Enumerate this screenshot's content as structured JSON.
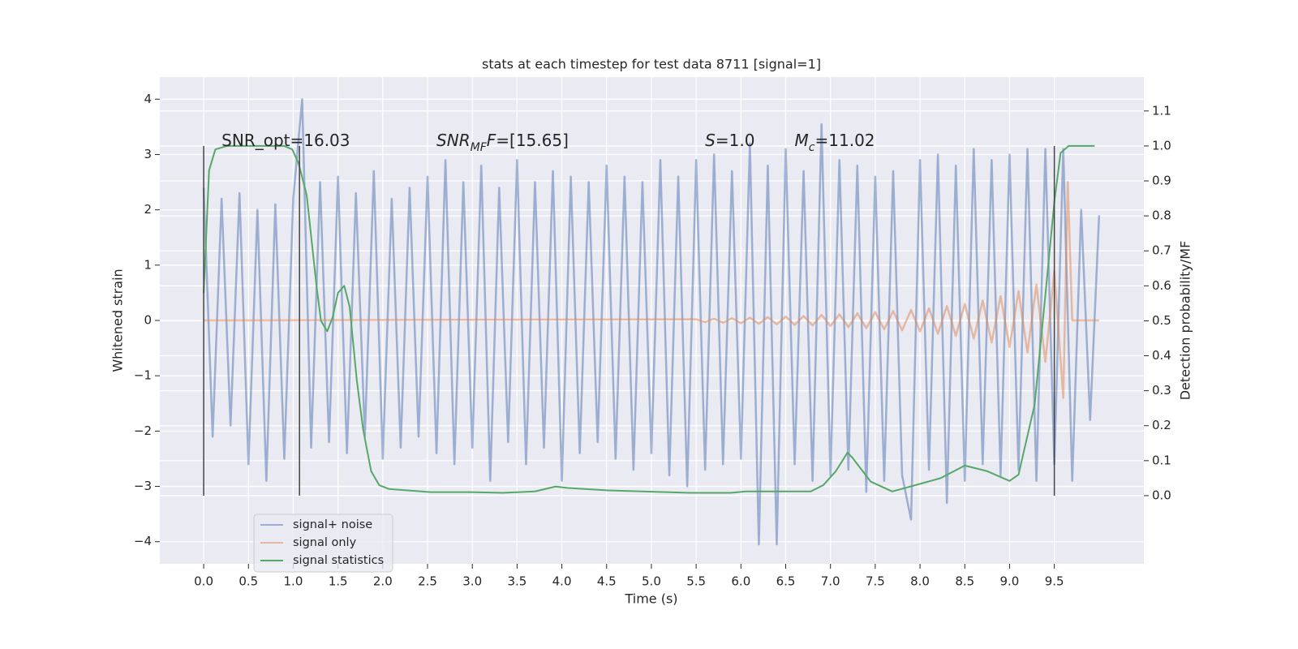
{
  "chart_data": {
    "type": "line",
    "title": "stats at each timestep for test data 8711 [signal=1]",
    "xlabel": "Time (s)",
    "ylabel": "Whitened strain",
    "y2label": "Detection probability/MF",
    "xlim": [
      -0.49,
      10.5
    ],
    "ylim": [
      -4.4,
      4.4
    ],
    "y2lim": [
      -0.195,
      1.197
    ],
    "xticks": [
      {
        "value": 0,
        "label": "0.0"
      },
      0.5,
      {
        "value": 1,
        "label": "1.0"
      },
      1.5,
      {
        "value": 2,
        "label": "2.0"
      },
      2.5,
      {
        "value": 3,
        "label": "3.0"
      },
      3.5,
      {
        "value": 4,
        "label": "4.0"
      },
      4.5,
      {
        "value": 5,
        "label": "5.0"
      },
      5.5,
      {
        "value": 6,
        "label": "6.0"
      },
      6.5,
      {
        "value": 7,
        "label": "7.0"
      },
      7.5,
      {
        "value": 8,
        "label": "8.0"
      },
      8.5,
      {
        "value": 9,
        "label": "9.0"
      },
      9.5
    ],
    "yticks": [
      {
        "value": -4,
        "label": "−4"
      },
      {
        "value": -3,
        "label": "−3"
      },
      {
        "value": -2,
        "label": "−2"
      },
      {
        "value": -1,
        "label": "−1"
      },
      0,
      1,
      2,
      3,
      4
    ],
    "y2ticks": [
      {
        "value": 0,
        "label": "0.0"
      },
      0.1,
      0.2,
      0.3,
      0.4,
      0.5,
      0.6,
      0.7,
      0.8,
      0.9,
      {
        "value": 1,
        "label": "1.0"
      },
      1.1
    ],
    "grid": true,
    "legend": "lower left",
    "series": [
      {
        "name": "signal+ noise",
        "color": "#4c72b0",
        "alpha": 0.5,
        "x": [
          0,
          0.1,
          0.2,
          0.3,
          0.4,
          0.5,
          0.6,
          0.7,
          0.8,
          0.9,
          1,
          1.1,
          1.2,
          1.3,
          1.4,
          1.5,
          1.6,
          1.7,
          1.8,
          1.9,
          2,
          2.1,
          2.2,
          2.3,
          2.4,
          2.5,
          2.6,
          2.7,
          2.8,
          2.9,
          3,
          3.1,
          3.2,
          3.3,
          3.4,
          3.5,
          3.6,
          3.7,
          3.8,
          3.9,
          4,
          4.1,
          4.2,
          4.3,
          4.4,
          4.5,
          4.6,
          4.7,
          4.8,
          4.9,
          5,
          5.1,
          5.2,
          5.3,
          5.4,
          5.5,
          5.6,
          5.7,
          5.8,
          5.9,
          6,
          6.1,
          6.2,
          6.3,
          6.4,
          6.5,
          6.6,
          6.7,
          6.8,
          6.9,
          7,
          7.1,
          7.2,
          7.3,
          7.4,
          7.5,
          7.6,
          7.7,
          7.8,
          7.9,
          8,
          8.1,
          8.2,
          8.3,
          8.4,
          8.5,
          8.6,
          8.7,
          8.8,
          8.9,
          9,
          9.1,
          9.2,
          9.3,
          9.4,
          9.5,
          9.6,
          9.7,
          9.8,
          9.9,
          10
        ],
        "values": [
          2.4,
          -2.1,
          2.2,
          -1.9,
          2.3,
          -2.6,
          2.0,
          -2.9,
          2.1,
          -2.5,
          2.2,
          4.0,
          -2.3,
          2.5,
          -2.2,
          2.6,
          -2.4,
          2.3,
          -2.1,
          2.7,
          -2.5,
          2.2,
          -2.3,
          2.4,
          -2.1,
          2.6,
          -2.4,
          2.9,
          -2.6,
          2.5,
          -2.3,
          2.8,
          -2.9,
          2.4,
          -2.2,
          2.9,
          -2.6,
          2.5,
          -2.3,
          2.7,
          -2.9,
          2.6,
          -2.4,
          2.5,
          -2.2,
          2.8,
          -2.5,
          2.6,
          -2.7,
          2.5,
          -2.4,
          2.9,
          -2.8,
          2.6,
          -3.0,
          2.9,
          -2.7,
          3.0,
          -2.6,
          2.7,
          -2.5,
          3.2,
          -4.05,
          2.8,
          -4.05,
          3.1,
          -2.6,
          2.7,
          -2.9,
          3.55,
          -2.8,
          2.9,
          -2.7,
          2.8,
          -3.1,
          2.6,
          -2.9,
          2.7,
          -2.8,
          -3.6,
          2.9,
          -2.7,
          3.0,
          -3.3,
          2.8,
          -2.9,
          3.1,
          -2.6,
          2.9,
          -2.8,
          3.0,
          -2.7,
          3.1,
          -2.9,
          3.1,
          -2.6,
          3.1,
          -2.9,
          2.0,
          -1.8,
          1.9
        ]
      },
      {
        "name": "signal only",
        "color": "#dd8452",
        "alpha": 0.5,
        "x": [
          0,
          5.5,
          5.6,
          5.7,
          5.8,
          5.9,
          6,
          6.1,
          6.2,
          6.3,
          6.4,
          6.5,
          6.6,
          6.7,
          6.8,
          6.9,
          7,
          7.1,
          7.2,
          7.3,
          7.4,
          7.5,
          7.6,
          7.7,
          7.8,
          7.9,
          8,
          8.1,
          8.2,
          8.3,
          8.4,
          8.5,
          8.6,
          8.7,
          8.8,
          8.9,
          9,
          9.1,
          9.2,
          9.3,
          9.4,
          9.5,
          9.6,
          9.65,
          9.7,
          10
        ],
        "values": [
          0,
          0.02,
          -0.03,
          0.03,
          -0.04,
          0.04,
          -0.05,
          0.05,
          -0.06,
          0.06,
          -0.07,
          0.07,
          -0.08,
          0.08,
          -0.09,
          0.1,
          -0.1,
          0.11,
          -0.12,
          0.13,
          -0.14,
          0.15,
          -0.16,
          0.17,
          -0.18,
          0.19,
          -0.2,
          0.22,
          -0.24,
          0.26,
          -0.28,
          0.3,
          -0.33,
          0.36,
          -0.4,
          0.44,
          -0.48,
          0.53,
          -0.58,
          0.65,
          -0.75,
          0.9,
          -1.4,
          2.5,
          0,
          0
        ]
      },
      {
        "name": "signal statistics",
        "color": "#55a868",
        "axis": "y2",
        "x": [
          0,
          0.06,
          0.13,
          0.26,
          0.9,
          0.99,
          1.06,
          1.15,
          1.26,
          1.31,
          1.38,
          1.44,
          1.5,
          1.57,
          1.63,
          1.71,
          1.78,
          1.87,
          1.96,
          2.07,
          2.53,
          2.98,
          3.34,
          3.7,
          3.93,
          4.07,
          4.52,
          5.43,
          5.88,
          6.06,
          6.78,
          6.92,
          7.06,
          7.19,
          7.24,
          7.45,
          7.69,
          7.95,
          8.23,
          8.5,
          8.75,
          9.0,
          9.1,
          9.28,
          9.41,
          9.5,
          9.57,
          9.66,
          9.95
        ],
        "values": [
          0.58,
          0.93,
          0.99,
          1.0,
          1.0,
          0.99,
          0.95,
          0.86,
          0.6,
          0.5,
          0.47,
          0.51,
          0.58,
          0.6,
          0.54,
          0.33,
          0.19,
          0.07,
          0.03,
          0.019,
          0.01,
          0.01,
          0.008,
          0.012,
          0.026,
          0.022,
          0.015,
          0.008,
          0.008,
          0.012,
          0.012,
          0.03,
          0.07,
          0.123,
          0.11,
          0.04,
          0.012,
          0.03,
          0.05,
          0.086,
          0.07,
          0.042,
          0.06,
          0.26,
          0.6,
          0.84,
          0.98,
          1.0,
          1.0
        ]
      }
    ],
    "vlines": {
      "x": [
        0,
        1.07,
        9.5
      ],
      "ymin": 0,
      "ymax": 1,
      "axis": "y2",
      "color": "#444444"
    },
    "annotations": [
      {
        "x": 0.2,
        "y": 3.24,
        "parts": [
          {
            "text": "SNR_opt=16.03"
          }
        ]
      },
      {
        "x": 2.6,
        "y": 3.24,
        "parts": [
          {
            "text": "SNR",
            "italic": true
          },
          {
            "text": "MF",
            "italic": true,
            "sub": true
          },
          {
            "text": "F",
            "italic": true
          },
          {
            "text": "=[15.65]"
          }
        ]
      },
      {
        "x": 5.6,
        "y": 3.24,
        "parts": [
          {
            "text": "S",
            "italic": true
          },
          {
            "text": "=1.0"
          }
        ]
      },
      {
        "x": 6.6,
        "y": 3.24,
        "parts": [
          {
            "text": "M",
            "italic": true
          },
          {
            "text": "c",
            "italic": true,
            "sub": true
          },
          {
            "text": "=11.02"
          }
        ]
      }
    ]
  }
}
